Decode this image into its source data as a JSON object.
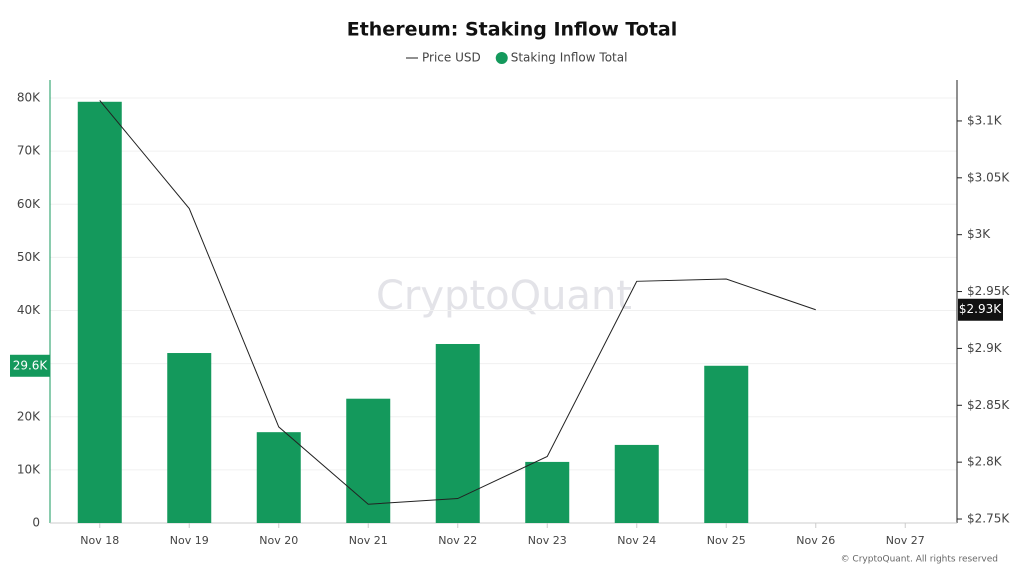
{
  "chart_data": {
    "type": "bar",
    "title": "Ethereum: Staking Inflow Total",
    "watermark": "CryptoQuant",
    "footer": "© CryptoQuant. All rights reserved",
    "categories": [
      "Nov 18",
      "Nov 19",
      "Nov 20",
      "Nov 21",
      "Nov 22",
      "Nov 23",
      "Nov 24",
      "Nov 25",
      "Nov 26",
      "Nov 27"
    ],
    "series": [
      {
        "name": "Price USD",
        "type": "line",
        "axis": "y2",
        "color": "#222222",
        "values": [
          3118,
          3023,
          2831,
          2763,
          2768,
          2805,
          2959,
          2961,
          2934,
          null
        ],
        "value_labels": [
          null,
          null,
          null,
          null,
          null,
          null,
          null,
          null,
          "$2.93K",
          null
        ]
      },
      {
        "name": "Staking Inflow Total",
        "type": "bar",
        "color": "#14995c",
        "values": [
          79300,
          32000,
          17100,
          23400,
          33700,
          11500,
          14700,
          29600,
          null,
          null
        ],
        "value_labels": [
          null,
          null,
          null,
          null,
          null,
          null,
          null,
          "29.6K",
          null,
          null
        ]
      }
    ],
    "ylim": [
      0,
      83400
    ],
    "yticks": [
      0,
      {
        "value": 10000,
        "label": "10K"
      },
      {
        "value": 20000,
        "label": "20K"
      },
      {
        "value": 30000,
        "label": "30K"
      },
      {
        "value": 40000,
        "label": "40K"
      },
      {
        "value": 50000,
        "label": "50K"
      },
      {
        "value": 60000,
        "label": "60K"
      },
      {
        "value": 70000,
        "label": "70K"
      },
      {
        "value": 80000,
        "label": "80K"
      }
    ],
    "y2lim": [
      2746.5,
      3136
    ],
    "y2ticks": [
      {
        "value": 2750,
        "label": "$2.75K"
      },
      {
        "value": 2800,
        "label": "$2.8K"
      },
      {
        "value": 2850,
        "label": "$2.85K"
      },
      {
        "value": 2900,
        "label": "$2.9K"
      },
      {
        "value": 2950,
        "label": "$2.95K"
      },
      {
        "value": 3000,
        "label": "$3K"
      },
      {
        "value": 3050,
        "label": "$3.05K"
      },
      {
        "value": 3100,
        "label": "$3.1K"
      }
    ],
    "grid": true
  }
}
